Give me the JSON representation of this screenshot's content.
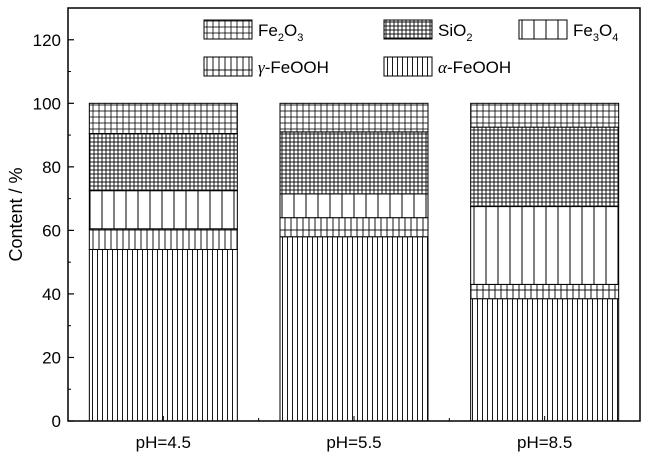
{
  "chart_data": {
    "type": "bar",
    "stacked": true,
    "categories": [
      "pH=4.5",
      "pH=5.5",
      "pH=8.5"
    ],
    "series": [
      {
        "name": "α-FeOOH",
        "label_parts": [
          "α",
          "-FeOOH"
        ],
        "values": [
          54,
          58,
          38.5
        ],
        "pattern": "vlines-dense"
      },
      {
        "name": "γ-FeOOH",
        "label_parts": [
          "γ",
          "-FeOOH"
        ],
        "values": [
          6.5,
          6,
          4.5
        ],
        "pattern": "hgrid-coarse"
      },
      {
        "name": "Fe3O4",
        "label_parts": [
          "Fe",
          "3",
          "O",
          "4"
        ],
        "values": [
          12,
          7.5,
          24.5
        ],
        "pattern": "vlines-wide"
      },
      {
        "name": "SiO2",
        "label_parts": [
          "SiO",
          "2"
        ],
        "values": [
          18,
          19.5,
          25
        ],
        "pattern": "grid-dense"
      },
      {
        "name": "Fe2O3",
        "label_parts": [
          "Fe",
          "2",
          "O",
          "3"
        ],
        "values": [
          9.5,
          9,
          7.5
        ],
        "pattern": "grid"
      }
    ],
    "ylabel": "Content / %",
    "xlabel": "",
    "ylim": [
      0,
      130
    ],
    "yticks": [
      0,
      20,
      40,
      60,
      80,
      100,
      120
    ],
    "grid": false,
    "legend_placement": "top"
  }
}
